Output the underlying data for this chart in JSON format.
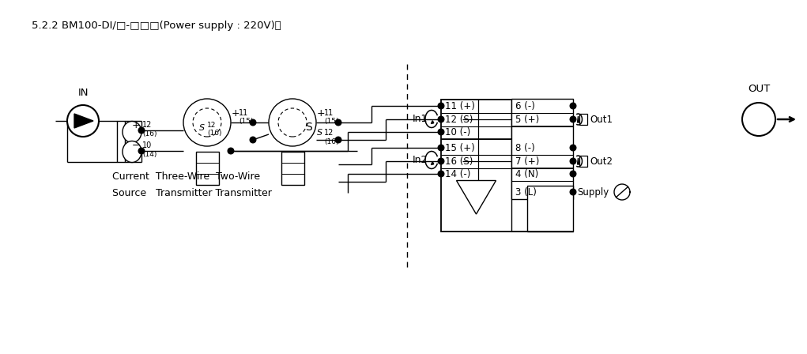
{
  "title": "5.2.2 BM100-DI/□-□□□(Power supply : 220V)：",
  "bg": "#ffffff",
  "k": "#000000",
  "fw": 10.21,
  "fh": 4.48,
  "dpi": 100,
  "left_terms": [
    "11 (+)",
    "12 (S)",
    "10 (-)",
    "15 (+)",
    "16 (S)",
    "14 (-)"
  ],
  "right_terms": [
    "6 (-)",
    "5 (+)",
    "8 (-)",
    "7 (+)",
    "4 (N)",
    "3 (L)"
  ]
}
